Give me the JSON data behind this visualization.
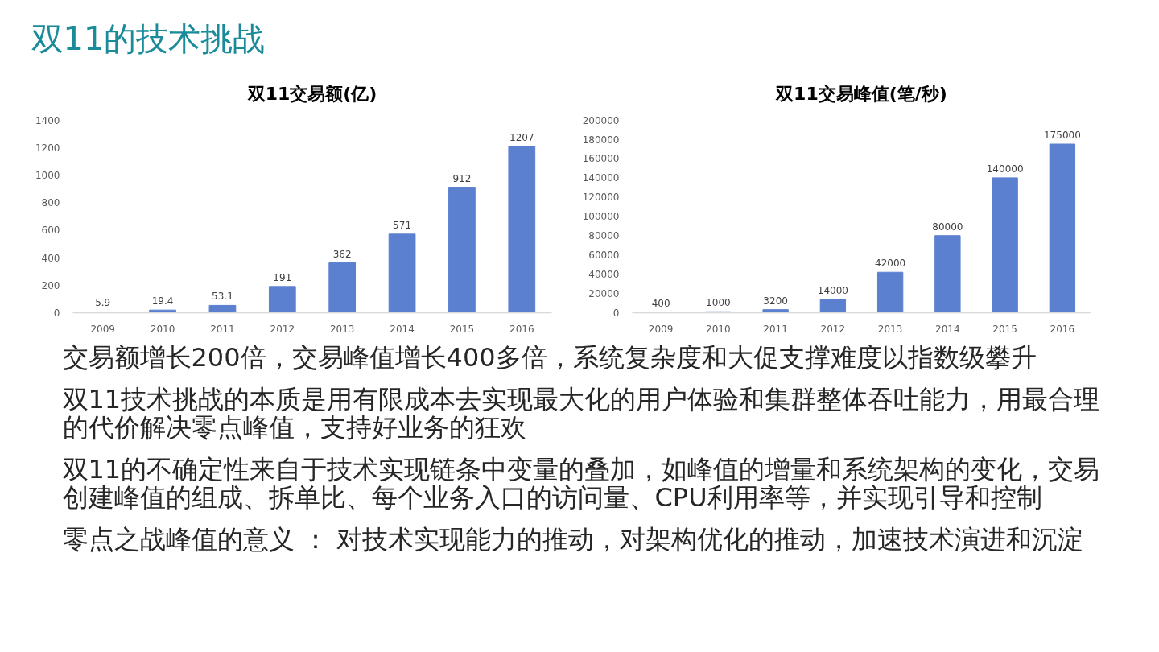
{
  "chart_data": [
    {
      "type": "other",
      "title": "双11的技术挑战"
    },
    {
      "type": "bar",
      "title": "双11交易额(亿)",
      "categories": [
        "2009",
        "2010",
        "2011",
        "2012",
        "2013",
        "2014",
        "2015",
        "2016"
      ],
      "values": [
        5.9,
        19.4,
        53.1,
        191,
        362,
        571,
        912,
        1207
      ],
      "color": "#5b80d0",
      "ylim": [
        0,
        1400
      ],
      "yticks": [
        0,
        200,
        400,
        600,
        800,
        1000,
        1200,
        1400
      ],
      "data_labels": true
    },
    {
      "type": "bar",
      "title": "双11交易峰值(笔/秒)",
      "categories": [
        "2009",
        "2010",
        "2011",
        "2012",
        "2013",
        "2014",
        "2015",
        "2016"
      ],
      "values": [
        400,
        1000,
        3200,
        14000,
        42000,
        80000,
        140000,
        175000
      ],
      "color": "#5b80d0",
      "ylim": [
        0,
        200000
      ],
      "yticks": [
        0,
        20000,
        40000,
        60000,
        80000,
        100000,
        120000,
        140000,
        160000,
        180000,
        200000
      ],
      "data_labels": true
    },
    {
      "type": "other",
      "annotations": [
        "交易额增长200倍，交易峰值增长400多倍，系统复杂度和大促支撑难度以指数级攀升",
        "双11技术挑战的本质是用有限成本去实现最大化的用户体验和集群整体吞吐能力，用最合理的代价解决零点峰值，支持好业务的狂欢",
        "双11的不确定性来自于技术实现链条中变量的叠加，如峰值的增量和系统架构的变化，交易创建峰值的组成、拆单比、每个业务入口的访问量、CPU利用率等，并实现引导和控制",
        "零点之战峰值的意义 ： 对技术实现能力的推动，对架构优化的推动，加速技术演进和沉淀"
      ]
    }
  ]
}
